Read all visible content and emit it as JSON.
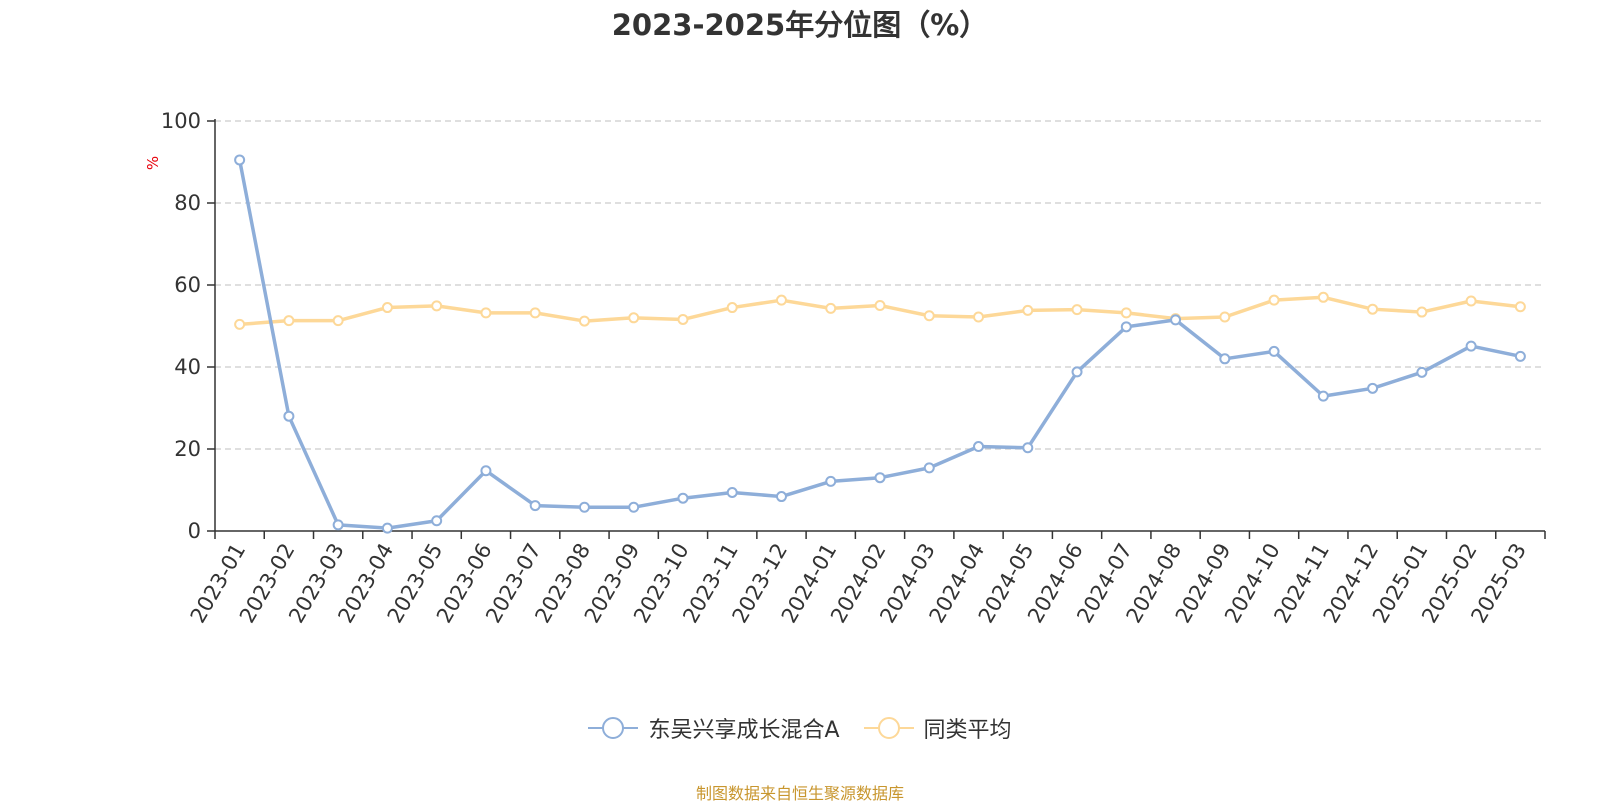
{
  "colors": {
    "series_primary": "#8eaed9",
    "series_secondary": "#fdd898",
    "grid": "#cccccc",
    "axis": "#333333",
    "ylabel": "#e8000b",
    "footer": "#c8962e"
  },
  "footer": {
    "source": "制图数据来自恒生聚源数据库"
  },
  "chart_data": {
    "type": "line",
    "title": "2023-2025年分位图（%）",
    "ylabel": "%",
    "ylim": [
      0,
      100
    ],
    "yticks": [
      0,
      20,
      40,
      60,
      80,
      100
    ],
    "grid": true,
    "legend_position": "bottom-center",
    "categories": [
      "2023-01",
      "2023-02",
      "2023-03",
      "2023-04",
      "2023-05",
      "2023-06",
      "2023-07",
      "2023-08",
      "2023-09",
      "2023-10",
      "2023-11",
      "2023-12",
      "2024-01",
      "2024-02",
      "2024-03",
      "2024-04",
      "2024-05",
      "2024-06",
      "2024-07",
      "2024-08",
      "2024-09",
      "2024-10",
      "2024-11",
      "2024-12",
      "2025-01",
      "2025-02",
      "2025-03"
    ],
    "series": [
      {
        "name": "东吴兴享成长混合A",
        "values": [
          90.5,
          28.0,
          1.5,
          0.7,
          2.5,
          14.7,
          6.2,
          5.8,
          5.8,
          8.0,
          9.4,
          8.4,
          12.1,
          13.0,
          15.4,
          20.6,
          20.3,
          38.8,
          49.8,
          51.5,
          42.0,
          43.8,
          32.9,
          34.8,
          38.7,
          45.1,
          42.6
        ]
      },
      {
        "name": "同类平均",
        "values": [
          50.4,
          51.3,
          51.3,
          54.5,
          54.9,
          53.2,
          53.2,
          51.2,
          52.0,
          51.6,
          54.5,
          56.3,
          54.3,
          55.0,
          52.5,
          52.2,
          53.8,
          54.0,
          53.2,
          51.8,
          52.2,
          56.3,
          57.0,
          54.1,
          53.4,
          56.1,
          54.7
        ]
      }
    ]
  }
}
